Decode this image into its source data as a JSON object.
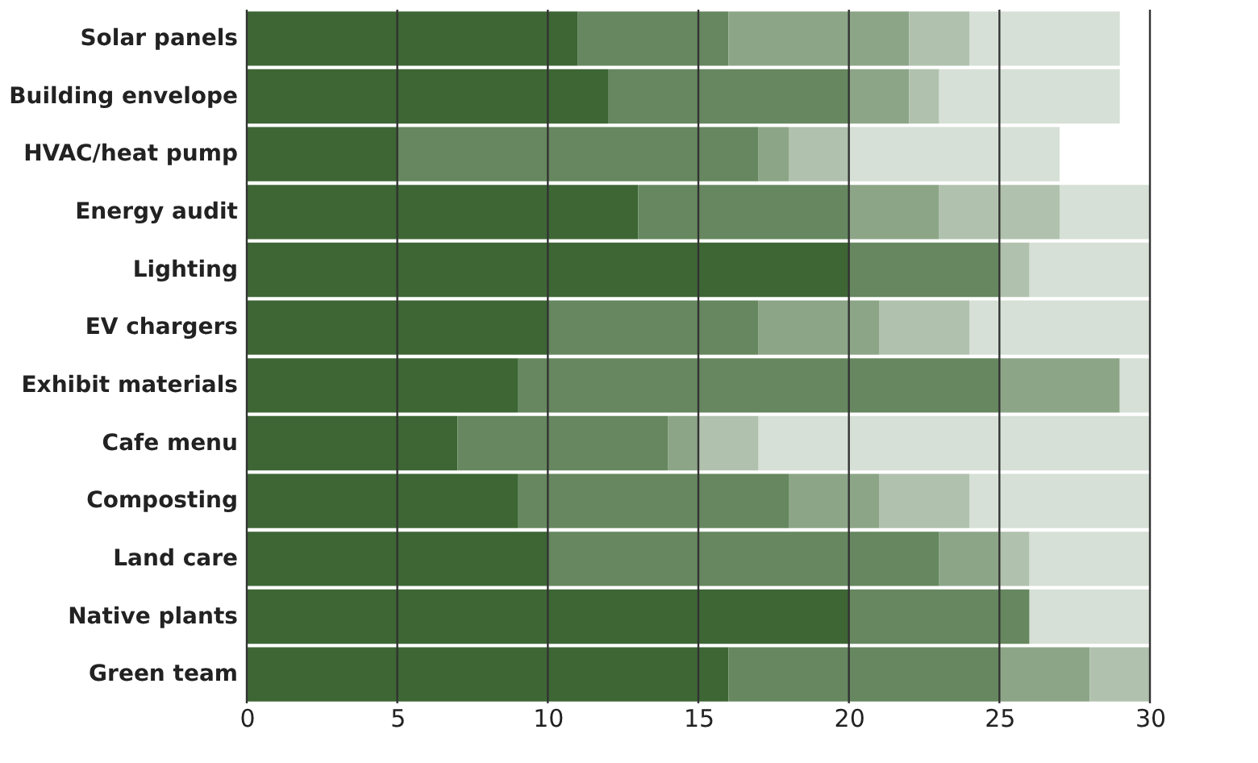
{
  "chart_data": {
    "type": "bar",
    "orientation": "horizontal",
    "stacked": true,
    "categories": [
      "Solar panels",
      "Building envelope",
      "HVAC/heat pump",
      "Energy audit",
      "Lighting",
      "EV chargers",
      "Exhibit materials",
      "Cafe menu",
      "Composting",
      "Land care",
      "Native plants",
      "Green team"
    ],
    "series": [
      {
        "color": "#3d6634",
        "values": [
          11,
          12,
          5,
          13,
          20,
          10,
          9,
          7,
          9,
          10,
          20,
          16
        ]
      },
      {
        "color": "#66875f",
        "values": [
          5,
          8,
          12,
          7,
          5,
          7,
          16,
          7,
          9,
          13,
          6,
          9
        ]
      },
      {
        "color": "#8ca587",
        "values": [
          6,
          2,
          1,
          3,
          0,
          4,
          4,
          1,
          3,
          2,
          0,
          3
        ]
      },
      {
        "color": "#b0c2ad",
        "values": [
          2,
          1,
          2,
          4,
          1,
          3,
          0,
          2,
          3,
          1,
          0,
          2
        ]
      },
      {
        "color": "#d6e0d6",
        "values": [
          5,
          6,
          7,
          3,
          4,
          6,
          1,
          13,
          6,
          4,
          4,
          0
        ]
      }
    ],
    "xlim": [
      0,
      30
    ],
    "xticks": [
      0,
      5,
      10,
      15,
      20,
      25,
      30
    ],
    "grid": "x",
    "legend": false
  }
}
